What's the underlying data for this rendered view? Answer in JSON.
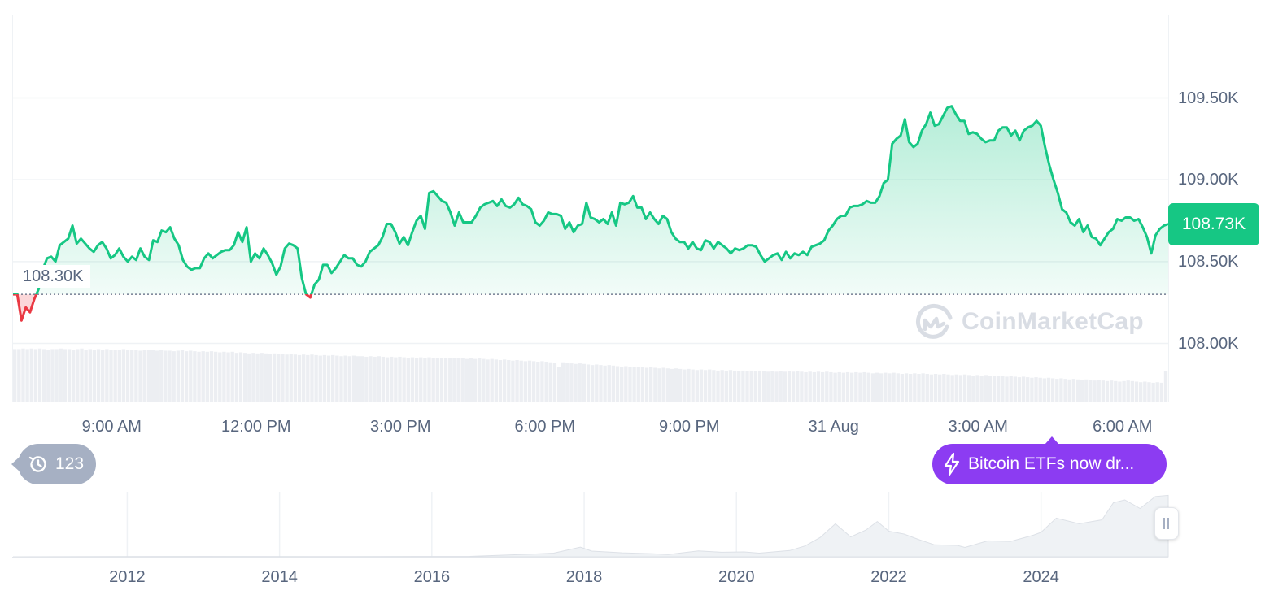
{
  "chart_data": [
    {
      "type": "area",
      "title": "",
      "xlabel": "",
      "ylabel": "",
      "x_tick_labels": [
        "9:00 AM",
        "12:00 PM",
        "3:00 PM",
        "6:00 PM",
        "9:00 PM",
        "31 Aug",
        "3:00 AM",
        "6:00 AM"
      ],
      "y_tick_labels": [
        "109.50K",
        "109.00K",
        "108.50K",
        "108.00K"
      ],
      "y_ticks": [
        109500,
        109000,
        108500,
        108000
      ],
      "ylim": [
        107620,
        110000
      ],
      "x_range_hours": [
        0,
        24
      ],
      "open_value": 108300,
      "open_label": "108.30K",
      "current_value": 108730,
      "current_label": "108.73K",
      "grid": true,
      "colors": {
        "up": "#16c784",
        "down": "#ea3943",
        "reference_line": "#58667e",
        "grid": "#eff2f5"
      },
      "series": [
        {
          "values": [
            108300,
            108300,
            108140,
            108220,
            108190,
            108270,
            108330,
            108450,
            108520,
            108530,
            108500,
            108600,
            108620,
            108640,
            108720,
            108610,
            108640,
            108610,
            108580,
            108560,
            108600,
            108620,
            108580,
            108520,
            108540,
            108580,
            108530,
            108500,
            108530,
            108510,
            108580,
            108530,
            108510,
            108630,
            108620,
            108690,
            108680,
            108710,
            108640,
            108600,
            108510,
            108470,
            108450,
            108460,
            108460,
            108520,
            108550,
            108520,
            108540,
            108560,
            108570,
            108570,
            108600,
            108680,
            108620,
            108710,
            108500,
            108550,
            108520,
            108580,
            108540,
            108490,
            108420,
            108470,
            108580,
            108610,
            108600,
            108580,
            108400,
            108300,
            108280,
            108360,
            108390,
            108480,
            108480,
            108430,
            108460,
            108500,
            108540,
            108520,
            108520,
            108480,
            108470,
            108500,
            108560,
            108580,
            108600,
            108650,
            108730,
            108730,
            108680,
            108610,
            108650,
            108600,
            108680,
            108750,
            108780,
            108700,
            108920,
            108930,
            108900,
            108870,
            108860,
            108800,
            108720,
            108800,
            108740,
            108740,
            108740,
            108780,
            108830,
            108850,
            108860,
            108870,
            108840,
            108880,
            108840,
            108830,
            108850,
            108890,
            108850,
            108840,
            108820,
            108740,
            108720,
            108750,
            108800,
            108790,
            108790,
            108780,
            108700,
            108740,
            108680,
            108720,
            108730,
            108860,
            108770,
            108760,
            108740,
            108760,
            108730,
            108800,
            108720,
            108860,
            108850,
            108860,
            108900,
            108830,
            108830,
            108760,
            108800,
            108760,
            108730,
            108780,
            108760,
            108680,
            108640,
            108620,
            108620,
            108580,
            108620,
            108580,
            108570,
            108630,
            108620,
            108580,
            108620,
            108600,
            108580,
            108550,
            108580,
            108570,
            108580,
            108600,
            108600,
            108590,
            108540,
            108500,
            108520,
            108540,
            108550,
            108510,
            108560,
            108520,
            108550,
            108540,
            108560,
            108540,
            108590,
            108600,
            108610,
            108630,
            108690,
            108720,
            108760,
            108780,
            108780,
            108830,
            108840,
            108840,
            108850,
            108870,
            108860,
            108860,
            108900,
            108980,
            109000,
            109220,
            109250,
            109270,
            109370,
            109230,
            109200,
            109220,
            109300,
            109340,
            109410,
            109330,
            109340,
            109390,
            109440,
            109450,
            109400,
            109360,
            109360,
            109280,
            109290,
            109280,
            109250,
            109230,
            109240,
            109240,
            109300,
            109320,
            109320,
            109270,
            109300,
            109240,
            109300,
            109320,
            109330,
            109360,
            109330,
            109200,
            109090,
            109000,
            108920,
            108820,
            108800,
            108740,
            108720,
            108760,
            108680,
            108720,
            108650,
            108640,
            108600,
            108640,
            108680,
            108700,
            108760,
            108750,
            108770,
            108770,
            108750,
            108760,
            108710,
            108650,
            108550,
            108660,
            108700,
            108720,
            108730
          ]
        }
      ],
      "volume": [
        0.95,
        0.95,
        0.96,
        0.95,
        0.96,
        0.95,
        0.96,
        0.95,
        0.94,
        0.95,
        0.95,
        0.96,
        0.95,
        0.95,
        0.94,
        0.95,
        0.96,
        0.94,
        0.95,
        0.94,
        0.95,
        0.94,
        0.95,
        0.93,
        0.94,
        0.93,
        0.95,
        0.94,
        0.94,
        0.93,
        0.92,
        0.94,
        0.93,
        0.93,
        0.92,
        0.93,
        0.92,
        0.92,
        0.91,
        0.92,
        0.93,
        0.91,
        0.92,
        0.91,
        0.9,
        0.91,
        0.9,
        0.91,
        0.9,
        0.89,
        0.9,
        0.89,
        0.9,
        0.88,
        0.89,
        0.88,
        0.87,
        0.88,
        0.87,
        0.88,
        0.87,
        0.86,
        0.87,
        0.86,
        0.86,
        0.85,
        0.86,
        0.85,
        0.84,
        0.85,
        0.84,
        0.85,
        0.84,
        0.83,
        0.84,
        0.83,
        0.84,
        0.83,
        0.82,
        0.83,
        0.82,
        0.83,
        0.82,
        0.82,
        0.81,
        0.82,
        0.81,
        0.82,
        0.81,
        0.8,
        0.81,
        0.8,
        0.81,
        0.8,
        0.79,
        0.8,
        0.79,
        0.8,
        0.79,
        0.8,
        0.79,
        0.78,
        0.79,
        0.78,
        0.79,
        0.78,
        0.79,
        0.78,
        0.77,
        0.78,
        0.77,
        0.78,
        0.77,
        0.76,
        0.77,
        0.76,
        0.75,
        0.76,
        0.75,
        0.74,
        0.75,
        0.74,
        0.73,
        0.74,
        0.73,
        0.72,
        0.73,
        0.72,
        0.71,
        0.7,
        0.62,
        0.71,
        0.7,
        0.69,
        0.68,
        0.69,
        0.68,
        0.67,
        0.66,
        0.67,
        0.66,
        0.65,
        0.66,
        0.65,
        0.64,
        0.63,
        0.64,
        0.63,
        0.62,
        0.63,
        0.62,
        0.61,
        0.62,
        0.61,
        0.6,
        0.61,
        0.6,
        0.59,
        0.6,
        0.59,
        0.58,
        0.59,
        0.58,
        0.57,
        0.58,
        0.57,
        0.58,
        0.57,
        0.56,
        0.57,
        0.56,
        0.57,
        0.56,
        0.55,
        0.56,
        0.55,
        0.56,
        0.55,
        0.56,
        0.55,
        0.54,
        0.55,
        0.54,
        0.55,
        0.54,
        0.55,
        0.54,
        0.55,
        0.54,
        0.53,
        0.54,
        0.53,
        0.54,
        0.53,
        0.54,
        0.53,
        0.52,
        0.53,
        0.52,
        0.53,
        0.52,
        0.53,
        0.52,
        0.53,
        0.52,
        0.51,
        0.52,
        0.51,
        0.52,
        0.51,
        0.52,
        0.51,
        0.5,
        0.51,
        0.5,
        0.51,
        0.5,
        0.51,
        0.5,
        0.49,
        0.5,
        0.49,
        0.5,
        0.49,
        0.48,
        0.49,
        0.48,
        0.49,
        0.48,
        0.47,
        0.48,
        0.47,
        0.48,
        0.47,
        0.46,
        0.47,
        0.46,
        0.45,
        0.46,
        0.45,
        0.44,
        0.45,
        0.44,
        0.43,
        0.44,
        0.43,
        0.42,
        0.43,
        0.42,
        0.41,
        0.42,
        0.41,
        0.4,
        0.41,
        0.4,
        0.39,
        0.4,
        0.39,
        0.38,
        0.39,
        0.38,
        0.37,
        0.38,
        0.37,
        0.36,
        0.37,
        0.38,
        0.37,
        0.36,
        0.35,
        0.36,
        0.35,
        0.34,
        0.35,
        0.34,
        0.55
      ]
    },
    {
      "type": "area",
      "title": "",
      "x_tick_labels": [
        "2012",
        "2014",
        "2016",
        "2018",
        "2020",
        "2022",
        "2024"
      ],
      "x_ticks": [
        2012,
        2014,
        2016,
        2018,
        2020,
        2022,
        2024
      ],
      "xlim": [
        2010.5,
        2025.67
      ],
      "series": [
        {
          "x": [
            2010.5,
            2013,
            2015,
            2016.5,
            2017.3,
            2017.6,
            2017.95,
            2018.1,
            2018.5,
            2018.9,
            2019.1,
            2019.5,
            2019.8,
            2020.1,
            2020.3,
            2020.7,
            2020.9,
            2021.1,
            2021.3,
            2021.5,
            2021.7,
            2021.85,
            2022.0,
            2022.2,
            2022.4,
            2022.6,
            2022.9,
            2023.0,
            2023.3,
            2023.6,
            2023.9,
            2024.0,
            2024.2,
            2024.5,
            2024.8,
            2024.95,
            2025.1,
            2025.3,
            2025.5,
            2025.67
          ],
          "values": [
            0.05,
            0.6,
            0.3,
            0.7,
            4.5,
            6.5,
            17.0,
            10.0,
            7.0,
            5.5,
            3.8,
            10.5,
            8.0,
            8.5,
            6.5,
            11.0,
            19.0,
            34.0,
            58.0,
            35.0,
            47.0,
            62.0,
            45.0,
            40.0,
            30.0,
            21.0,
            20.0,
            16.5,
            28.0,
            27.0,
            38.0,
            43.0,
            68.0,
            58.0,
            65.0,
            95.0,
            100.0,
            85.0,
            106.0,
            108.0
          ]
        }
      ],
      "unit": "K"
    }
  ],
  "y_axis_labels": [
    "109.50K",
    "109.00K",
    "108.50K",
    "108.00K"
  ],
  "x_axis_labels": [
    "9:00 AM",
    "12:00 PM",
    "3:00 PM",
    "6:00 PM",
    "9:00 PM",
    "31 Aug",
    "3:00 AM",
    "6:00 AM"
  ],
  "navigator_labels": [
    "2012",
    "2014",
    "2016",
    "2018",
    "2020",
    "2022",
    "2024"
  ],
  "price_badge": "108.73K",
  "open_label": "108.30K",
  "history_count": "123",
  "news_text": "Bitcoin ETFs now dr...",
  "watermark": "CoinMarketCap",
  "icons": {
    "history": "history-clock-icon",
    "news": "lightning-bolt-icon",
    "watermark": "coinmarketcap-logo-icon",
    "handle": "drag-handle-icon"
  }
}
